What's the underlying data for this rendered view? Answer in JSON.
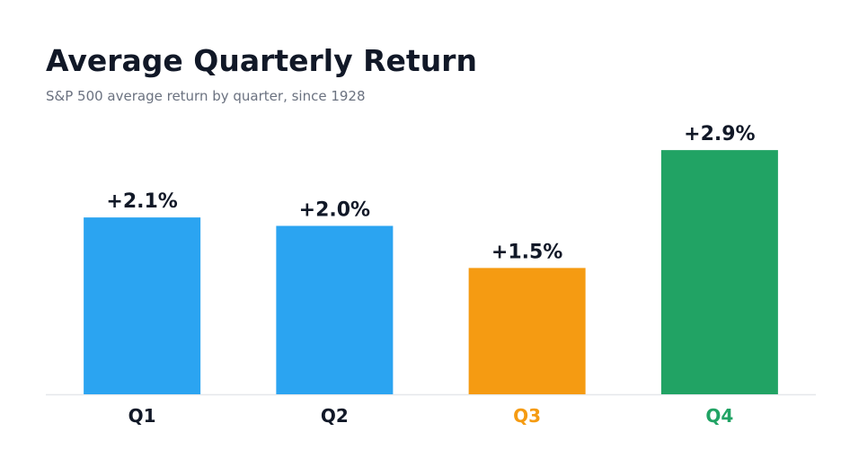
{
  "chart_data": {
    "type": "bar",
    "title": "Average Quarterly Return",
    "subtitle": "S&P 500 average return by quarter, since 1928",
    "categories": [
      "Q1",
      "Q2",
      "Q3",
      "Q4"
    ],
    "values": [
      2.1,
      2.0,
      1.5,
      2.9
    ],
    "value_labels": [
      "+2.1%",
      "+2.0%",
      "+1.5%",
      "+2.9%"
    ],
    "bar_colors": [
      "#2ba4f1",
      "#2ba4f1",
      "#f59b12",
      "#21a364"
    ],
    "tick_colors": [
      "#111827",
      "#111827",
      "#f59b12",
      "#21a364"
    ],
    "ylim": [
      0,
      3.2
    ],
    "grid": false,
    "legend": "none"
  }
}
